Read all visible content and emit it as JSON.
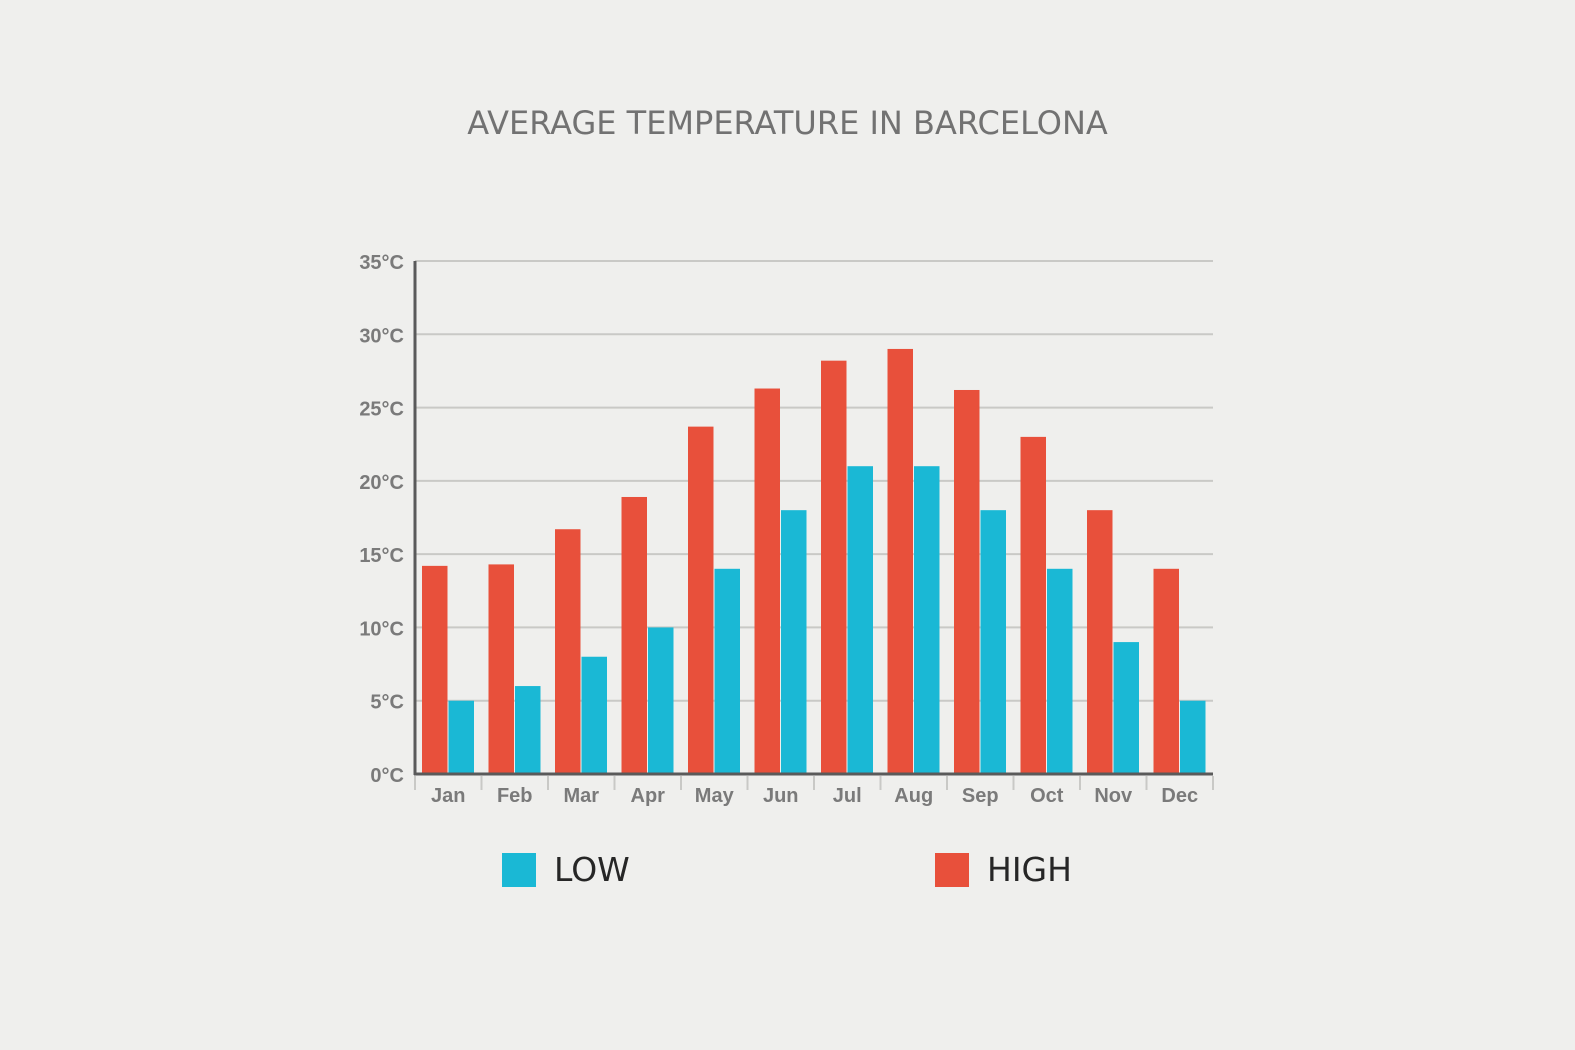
{
  "chart_data": {
    "type": "bar",
    "title": "AVERAGE TEMPERATURE IN BARCELONA",
    "xlabel": "",
    "ylabel": "",
    "categories": [
      "Jan",
      "Feb",
      "Mar",
      "Apr",
      "May",
      "Jun",
      "Jul",
      "Aug",
      "Sep",
      "Oct",
      "Nov",
      "Dec"
    ],
    "series": [
      {
        "name": "HIGH",
        "color": "#e8503b",
        "values": [
          14.2,
          14.3,
          16.7,
          18.9,
          23.7,
          26.3,
          28.2,
          29.0,
          26.2,
          23.0,
          18.0,
          14.0
        ]
      },
      {
        "name": "LOW",
        "color": "#1ab8d5",
        "values": [
          5,
          6,
          8,
          10,
          14,
          18,
          21,
          21,
          18,
          14,
          9,
          5
        ]
      }
    ],
    "ylim": [
      0,
      35
    ],
    "yticks": [
      0,
      5,
      10,
      15,
      20,
      25,
      30,
      35
    ],
    "ytick_labels": [
      "0°C",
      "5°C",
      "10°C",
      "15°C",
      "20°C",
      "25°C",
      "30°C",
      "35°C"
    ],
    "grid": true,
    "legend": {
      "position": "bottom",
      "items": [
        {
          "label": "LOW",
          "color": "#1ab8d5"
        },
        {
          "label": "HIGH",
          "color": "#e8503b"
        }
      ]
    }
  }
}
